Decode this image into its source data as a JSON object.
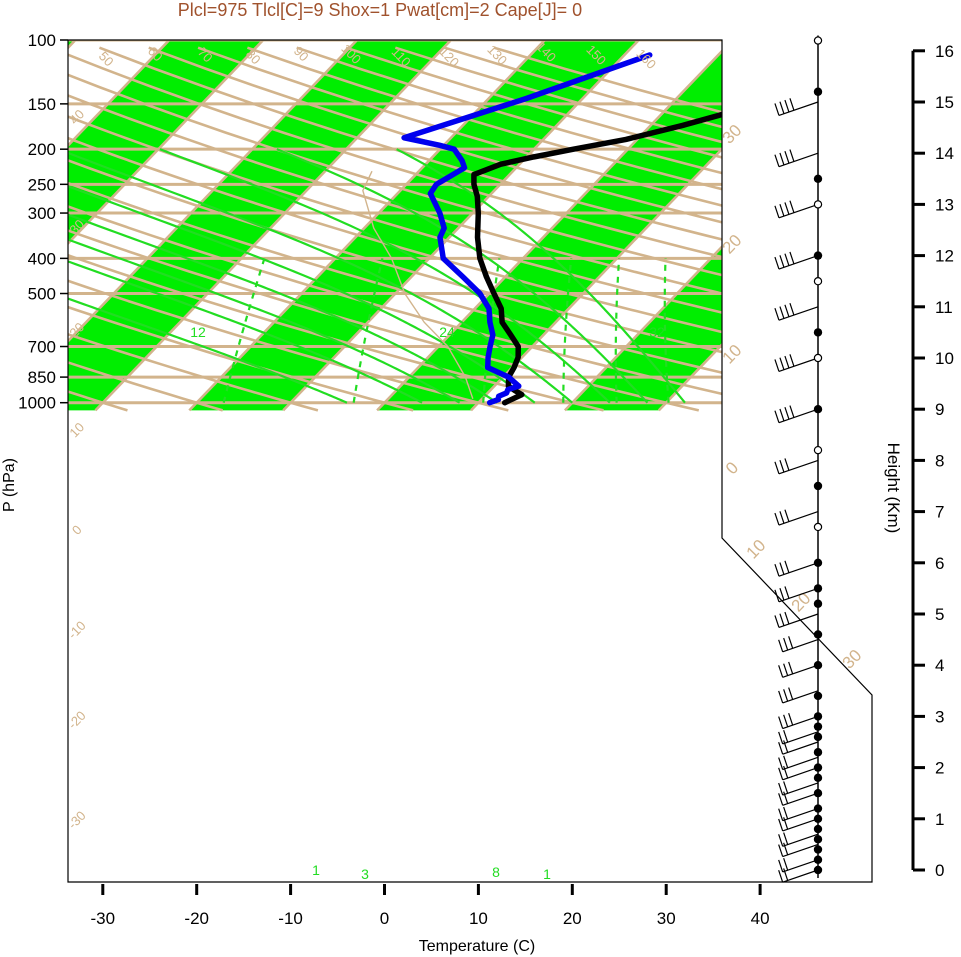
{
  "chart_data": {
    "type": "line",
    "title": "Plcl=975 Tlcl[C]=9 Shox=1 Pwat[cm]=2 Cape[J]= 0",
    "xlabel": "Temperature (C)",
    "ylabel": "P (hPa)",
    "y2label": "Height (Km)",
    "xlim": [
      -33,
      50
    ],
    "ylim_log": [
      1050,
      100
    ],
    "x_ticks": [
      "-30",
      "-20",
      "-10",
      "0",
      "10",
      "20",
      "30",
      "40"
    ],
    "p_ticks": [
      "100",
      "150",
      "200",
      "250",
      "300",
      "400",
      "500",
      "700",
      "850",
      "1000"
    ],
    "height_ticks": [
      "0",
      "1",
      "2",
      "3",
      "4",
      "5",
      "6",
      "7",
      "8",
      "9",
      "10",
      "11",
      "12",
      "13",
      "14",
      "15",
      "16"
    ],
    "dry_adiabat_labels": [
      "50",
      "60",
      "70",
      "80",
      "90",
      "100",
      "110",
      "120",
      "130",
      "140",
      "150",
      "160"
    ],
    "isotherm_labels": [
      "40",
      "30",
      "20",
      "10",
      "0",
      "-10",
      "-20",
      "-30",
      "30",
      "20",
      "10",
      "0",
      "10",
      "20",
      "30"
    ],
    "mixing_ratio_labels": [
      "12",
      "24",
      "32",
      "1",
      "3",
      "8",
      "1"
    ],
    "colors": {
      "title": "#a0522d",
      "background_lines": "#d2b48c",
      "bands": "#00ee00",
      "moist_adiabats": "#22dd22",
      "temperature": "#000000",
      "dewpoint": "#0000ee"
    },
    "series": [
      {
        "name": "",
        "type": "temperature",
        "points": [
          [
            12.8,
            1000
          ],
          [
            13.8,
            950
          ],
          [
            12.6,
            925
          ],
          [
            11.5,
            900
          ],
          [
            10.6,
            850
          ],
          [
            10.2,
            800
          ],
          [
            9.6,
            750
          ],
          [
            8.5,
            700
          ],
          [
            6.5,
            650
          ],
          [
            4.3,
            600
          ],
          [
            2.8,
            550
          ],
          [
            0.5,
            500
          ],
          [
            -2.0,
            450
          ],
          [
            -4.6,
            400
          ],
          [
            -7.0,
            350
          ],
          [
            -9.4,
            300
          ],
          [
            -11.2,
            270
          ],
          [
            -12.8,
            250
          ],
          [
            -13.8,
            235
          ],
          [
            -12.0,
            220
          ],
          [
            -9.2,
            210
          ],
          [
            -5.8,
            200
          ],
          [
            -1.2,
            188
          ],
          [
            3.4,
            172
          ],
          [
            8.0,
            155
          ],
          [
            12.5,
            136
          ],
          [
            18.5,
            112
          ]
        ]
      },
      {
        "name": "",
        "type": "dewpoint",
        "points": [
          [
            11.2,
            1000
          ],
          [
            11.8,
            980
          ],
          [
            11.5,
            960
          ],
          [
            12.0,
            940
          ],
          [
            11.8,
            920
          ],
          [
            12.6,
            900
          ],
          [
            10.6,
            850
          ],
          [
            7.4,
            800
          ],
          [
            6.4,
            750
          ],
          [
            5.5,
            700
          ],
          [
            4.6,
            650
          ],
          [
            3.0,
            600
          ],
          [
            1.5,
            550
          ],
          [
            -1.0,
            500
          ],
          [
            -4.5,
            450
          ],
          [
            -8.5,
            400
          ],
          [
            -11.0,
            350
          ],
          [
            -11.5,
            330
          ],
          [
            -13.5,
            300
          ],
          [
            -16.5,
            265
          ],
          [
            -16.8,
            250
          ],
          [
            -15.5,
            225
          ],
          [
            -16.5,
            215
          ],
          [
            -18.5,
            200
          ],
          [
            -20.5,
            195
          ],
          [
            -25.0,
            186
          ],
          [
            -16.0,
            145
          ],
          [
            -7.3,
            110
          ]
        ]
      }
    ],
    "wind_profile": {
      "heights_km": [
        0,
        0.2,
        0.5,
        0.7,
        1.0,
        1.2,
        1.5,
        1.7,
        2.0,
        2.2,
        2.5,
        2.7,
        3.0,
        3.5,
        4.0,
        4.5,
        5.0,
        5.5,
        6.0,
        7.0,
        8.0,
        9.0,
        10.0,
        11.0,
        12.0,
        13.0,
        14.0,
        15.0
      ],
      "dots_km": [
        0.0,
        0.2,
        0.4,
        0.6,
        0.8,
        1.0,
        1.2,
        1.5,
        1.8,
        2.0,
        2.3,
        2.6,
        2.8,
        3.0,
        3.4,
        4.0,
        4.6,
        5.2,
        5.5,
        6.0,
        7.5,
        9.0,
        10.5,
        12.0,
        13.5,
        15.2
      ],
      "open_dots_km": [
        6.7,
        8.2,
        10.0,
        11.5,
        13.0,
        16.2
      ]
    }
  }
}
